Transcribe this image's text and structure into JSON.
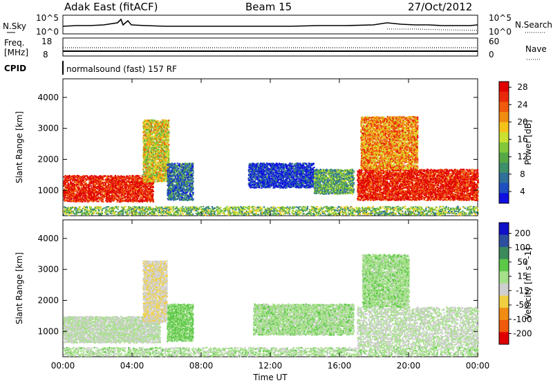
{
  "header": {
    "radar": "Adak East (fitACF)",
    "beam": "Beam 15",
    "date": "27/Oct/2012"
  },
  "panels": {
    "nsky": {
      "left_label": "N.Sky",
      "right_label": "N.Search",
      "left_ticks": [
        "10^5",
        "10^0"
      ],
      "right_ticks": [
        "10^5",
        "10^0"
      ]
    },
    "freq": {
      "left_label_line1": "Freq.",
      "left_label_line2": "[MHz]",
      "left_ticks": [
        "18",
        "8"
      ],
      "right_label": "Nave",
      "right_ticks": [
        "60",
        "0"
      ]
    },
    "cpid": {
      "label": "CPID",
      "text": "normalsound (fast) 157 RF"
    }
  },
  "chart_data": [
    {
      "type": "heatmap",
      "title": "Power",
      "xlabel": "Time UT",
      "ylabel": "Slant Range [km]",
      "colorbar_label": "Power [dB]",
      "x_ticks": [
        "00:00",
        "04:00",
        "08:00",
        "12:00",
        "16:00",
        "20:00",
        "00:00"
      ],
      "x_range_hours": [
        0,
        24
      ],
      "y_ticks": [
        1000,
        2000,
        3000,
        4000
      ],
      "ylim": [
        180,
        4600
      ],
      "colorbar_ticks": [
        "4",
        "8",
        "12",
        "16",
        "20",
        "24",
        "28"
      ],
      "colorbar_colors": [
        "#1010e0",
        "#1e4fc0",
        "#2f6f9a",
        "#3d8e6a",
        "#56a845",
        "#82c83a",
        "#cbe030",
        "#f5c31a",
        "#f08c12",
        "#ef5a0c",
        "#e82a0a",
        "#e00000"
      ],
      "echo_regions": [
        {
          "t0": 0.0,
          "t1": 5.2,
          "r0": 650,
          "r1": 1500,
          "value": 28
        },
        {
          "t0": 4.6,
          "t1": 6.1,
          "r0": 1300,
          "r1": 3300,
          "value": 18
        },
        {
          "t0": 6.0,
          "t1": 7.5,
          "r0": 700,
          "r1": 1900,
          "value": 8
        },
        {
          "t0": 10.7,
          "t1": 14.5,
          "r0": 1100,
          "r1": 1900,
          "value": 4
        },
        {
          "t0": 14.5,
          "t1": 16.8,
          "r0": 900,
          "r1": 1700,
          "value": 12
        },
        {
          "t0": 17.0,
          "t1": 24.0,
          "r0": 700,
          "r1": 1700,
          "value": 28
        },
        {
          "t0": 17.2,
          "t1": 20.5,
          "r0": 1700,
          "r1": 3400,
          "value": 22
        },
        {
          "t0": 0.0,
          "t1": 24.0,
          "r0": 220,
          "r1": 500,
          "value": 14
        }
      ]
    },
    {
      "type": "heatmap",
      "title": "Velocity",
      "xlabel": "Time UT",
      "ylabel": "Slant Range [km]",
      "colorbar_label": "Velocity [m s^-1]",
      "x_ticks": [
        "00:00",
        "04:00",
        "08:00",
        "12:00",
        "16:00",
        "20:00",
        "00:00"
      ],
      "x_range_hours": [
        0,
        24
      ],
      "y_ticks": [
        1000,
        2000,
        3000,
        4000
      ],
      "ylim": [
        180,
        4600
      ],
      "colorbar_ticks": [
        "200",
        "100",
        "50",
        "15",
        "-15",
        "-50",
        "-100",
        "-200"
      ],
      "colorbar_colors": [
        "#1010c8",
        "#2d4fa0",
        "#3c8a5c",
        "#5cc848",
        "#a6e08a",
        "#cfcfcf",
        "#f0d040",
        "#f08c12",
        "#ef5a0c",
        "#e00000"
      ],
      "echo_regions": [
        {
          "t0": 0.0,
          "t1": 5.6,
          "r0": 650,
          "r1": 1500,
          "value": 0
        },
        {
          "t0": 4.6,
          "t1": 6.0,
          "r0": 1300,
          "r1": 3300,
          "value": -40
        },
        {
          "t0": 6.0,
          "t1": 7.5,
          "r0": 700,
          "r1": 1900,
          "value": 60
        },
        {
          "t0": 11.0,
          "t1": 16.8,
          "r0": 900,
          "r1": 1900,
          "value": 25
        },
        {
          "t0": 17.0,
          "t1": 24.0,
          "r0": 500,
          "r1": 1800,
          "value": 0
        },
        {
          "t0": 17.3,
          "t1": 20.0,
          "r0": 1800,
          "r1": 3500,
          "value": 30
        },
        {
          "t0": 0.0,
          "t1": 24.0,
          "r0": 220,
          "r1": 500,
          "value": 20
        }
      ]
    }
  ]
}
